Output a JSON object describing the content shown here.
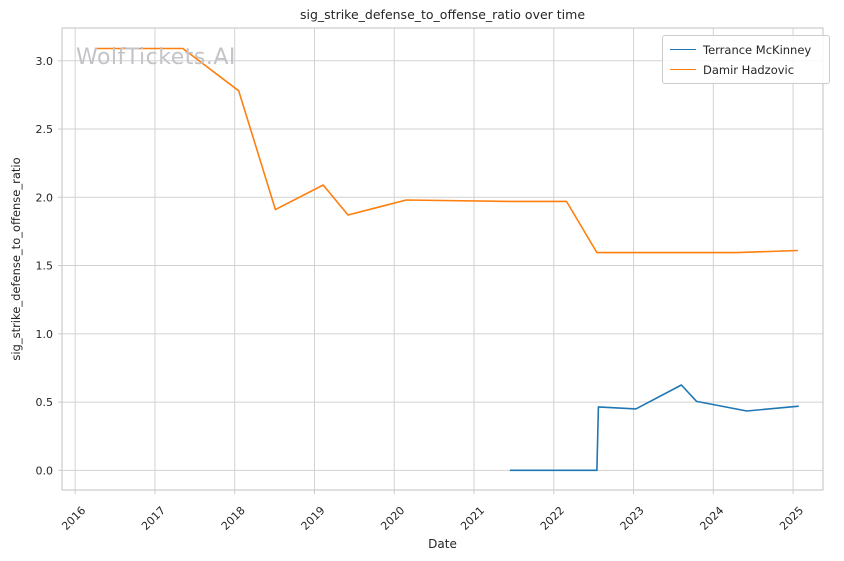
{
  "title": "sig_strike_defense_to_offense_ratio over time",
  "watermark": "WolfTickets.AI",
  "colors": {
    "grid": "#d2d2d2",
    "spine": "#cccccc",
    "text": "#262626",
    "watermark": "#c4c4c8",
    "background": "#ffffff"
  },
  "chart_data": {
    "type": "line",
    "title": "sig_strike_defense_to_offense_ratio over time",
    "xlabel": "Date",
    "ylabel": "sig_strike_defense_to_offense_ratio",
    "xlim": [
      2015.835,
      2025.375
    ],
    "ylim": [
      -0.144,
      3.24
    ],
    "grid": true,
    "legend_position": "upper right",
    "x_ticks": [
      {
        "value": 2016,
        "label": "2016"
      },
      {
        "value": 2017,
        "label": "2017"
      },
      {
        "value": 2018,
        "label": "2018"
      },
      {
        "value": 2019,
        "label": "2019"
      },
      {
        "value": 2020,
        "label": "2020"
      },
      {
        "value": 2021,
        "label": "2021"
      },
      {
        "value": 2022,
        "label": "2022"
      },
      {
        "value": 2023,
        "label": "2023"
      },
      {
        "value": 2024,
        "label": "2024"
      },
      {
        "value": 2025,
        "label": "2025"
      }
    ],
    "x_tick_rotation": 45,
    "y_ticks": [
      {
        "value": 0.0,
        "label": "0.0"
      },
      {
        "value": 0.5,
        "label": "0.5"
      },
      {
        "value": 1.0,
        "label": "1.0"
      },
      {
        "value": 1.5,
        "label": "1.5"
      },
      {
        "value": 2.0,
        "label": "2.0"
      },
      {
        "value": 2.5,
        "label": "2.5"
      },
      {
        "value": 3.0,
        "label": "3.0"
      }
    ],
    "series": [
      {
        "name": "Terrance McKinney",
        "color": "#1f77b4",
        "points": [
          [
            2021.45,
            0.0
          ],
          [
            2022.54,
            0.0
          ],
          [
            2022.56,
            0.465
          ],
          [
            2023.03,
            0.45
          ],
          [
            2023.6,
            0.625
          ],
          [
            2023.79,
            0.505
          ],
          [
            2024.42,
            0.435
          ],
          [
            2025.07,
            0.47
          ]
        ]
      },
      {
        "name": "Damir Hadzovic",
        "color": "#ff7f0e",
        "points": [
          [
            2016.25,
            3.09
          ],
          [
            2017.35,
            3.09
          ],
          [
            2018.05,
            2.78
          ],
          [
            2018.51,
            1.91
          ],
          [
            2019.11,
            2.09
          ],
          [
            2019.42,
            1.87
          ],
          [
            2020.15,
            1.98
          ],
          [
            2021.45,
            1.97
          ],
          [
            2022.16,
            1.97
          ],
          [
            2022.54,
            1.595
          ],
          [
            2024.3,
            1.595
          ],
          [
            2025.06,
            1.61
          ]
        ]
      }
    ]
  }
}
